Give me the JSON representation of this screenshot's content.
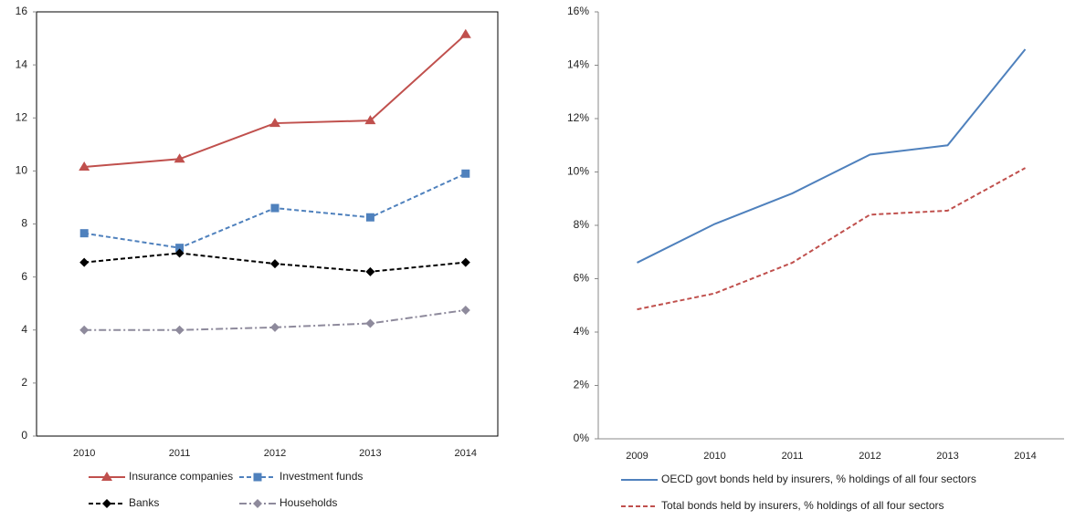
{
  "chart_data": [
    {
      "type": "line",
      "categories": [
        "2010",
        "2011",
        "2012",
        "2013",
        "2014"
      ],
      "ylim": [
        0,
        16
      ],
      "yticks": [
        0,
        2,
        4,
        6,
        8,
        10,
        12,
        14,
        16
      ],
      "legend": "bottom",
      "series": [
        {
          "name": "Insurance companies",
          "color": "#c0504d",
          "line_style": "solid",
          "marker": "triangle",
          "values": [
            10.15,
            10.45,
            11.8,
            11.9,
            15.15
          ]
        },
        {
          "name": "Investment funds",
          "color": "#4f81bd",
          "line_style": "dashed",
          "marker": "square",
          "values": [
            7.65,
            7.1,
            8.6,
            8.25,
            9.9
          ]
        },
        {
          "name": "Banks",
          "color": "#000000",
          "line_style": "dashed",
          "marker": "diamond",
          "values": [
            6.55,
            6.9,
            6.5,
            6.2,
            6.55
          ]
        },
        {
          "name": "Households",
          "color": "#8e8a9c",
          "line_style": "dashdot",
          "marker": "diamond",
          "values": [
            4.0,
            4.0,
            4.1,
            4.25,
            4.75
          ]
        }
      ]
    },
    {
      "type": "line",
      "categories": [
        "2009",
        "2010",
        "2011",
        "2012",
        "2013",
        "2014"
      ],
      "ylim": [
        0,
        16
      ],
      "yticks": [
        {
          "value": 0,
          "label": "0%"
        },
        {
          "value": 2,
          "label": "2%"
        },
        {
          "value": 4,
          "label": "4%"
        },
        {
          "value": 6,
          "label": "6%"
        },
        {
          "value": 8,
          "label": "8%"
        },
        {
          "value": 10,
          "label": "10%"
        },
        {
          "value": 12,
          "label": "12%"
        },
        {
          "value": 14,
          "label": "14%"
        },
        {
          "value": 16,
          "label": "16%"
        }
      ],
      "legend": "bottom",
      "series": [
        {
          "name": "OECD govt bonds held by insurers, % holdings of all four sectors",
          "color": "#4f81bd",
          "line_style": "solid",
          "marker": "none",
          "values": [
            6.6,
            8.05,
            9.2,
            10.65,
            11.0,
            14.6
          ]
        },
        {
          "name": "Total bonds held by insurers, % holdings of all four sectors",
          "color": "#c0504d",
          "line_style": "dashed",
          "marker": "none",
          "values": [
            4.85,
            5.45,
            6.6,
            8.4,
            8.55,
            10.15
          ]
        }
      ]
    }
  ]
}
